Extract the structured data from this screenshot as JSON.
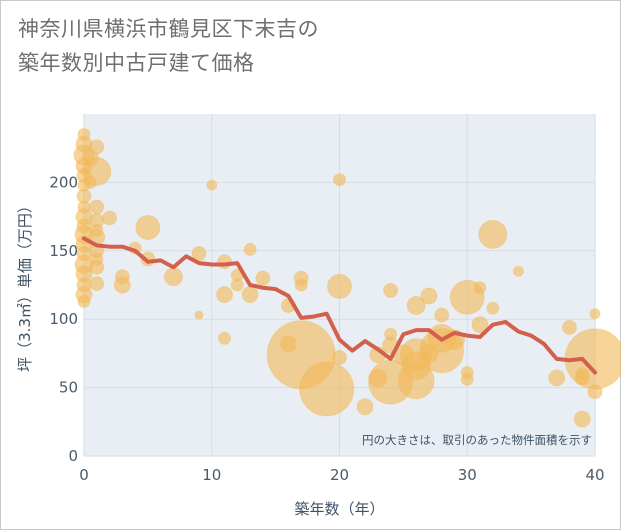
{
  "title_lines": [
    "神奈川県横浜市鶴見区下末吉の",
    "築年数別中古戸建て価格"
  ],
  "colors": {
    "bubble_fill": "#f2b95a",
    "bubble_opacity": 0.62,
    "line": "#d2604c",
    "grid": "#d4dde6",
    "plot_bg": "#e9eef4",
    "tick_text": "#4a5a6a"
  },
  "chart_data": {
    "type": "scatter",
    "title": "神奈川県横浜市鶴見区下末吉の築年数別中古戸建て価格",
    "xlabel": "築年数（年）",
    "ylabel": "坪（3.3㎡）単価（万円）",
    "xlim": [
      0,
      40
    ],
    "ylim": [
      0,
      250
    ],
    "x_ticks": [
      0,
      10,
      20,
      30,
      40
    ],
    "y_ticks": [
      0,
      50,
      100,
      150,
      200
    ],
    "grid": true,
    "note": "円の大きさは、取引のあった物件面積を示す",
    "bubbles": [
      {
        "x": 0,
        "y": 235,
        "s": 6
      },
      {
        "x": 0,
        "y": 228,
        "s": 8
      },
      {
        "x": 0,
        "y": 220,
        "s": 10
      },
      {
        "x": 0,
        "y": 212,
        "s": 8
      },
      {
        "x": 0,
        "y": 205,
        "s": 7
      },
      {
        "x": 0,
        "y": 198,
        "s": 6
      },
      {
        "x": 0,
        "y": 190,
        "s": 7
      },
      {
        "x": 0,
        "y": 182,
        "s": 6
      },
      {
        "x": 0,
        "y": 175,
        "s": 8
      },
      {
        "x": 0,
        "y": 168,
        "s": 7
      },
      {
        "x": 0,
        "y": 162,
        "s": 9
      },
      {
        "x": 0,
        "y": 155,
        "s": 8
      },
      {
        "x": 0,
        "y": 148,
        "s": 7
      },
      {
        "x": 0,
        "y": 140,
        "s": 9
      },
      {
        "x": 0,
        "y": 133,
        "s": 8
      },
      {
        "x": 0,
        "y": 125,
        "s": 7
      },
      {
        "x": 0,
        "y": 118,
        "s": 8
      },
      {
        "x": 0,
        "y": 113,
        "s": 6
      },
      {
        "x": 0.5,
        "y": 200,
        "s": 6
      },
      {
        "x": 0.5,
        "y": 218,
        "s": 8
      },
      {
        "x": 1,
        "y": 226,
        "s": 7
      },
      {
        "x": 1,
        "y": 208,
        "s": 14
      },
      {
        "x": 1,
        "y": 182,
        "s": 7
      },
      {
        "x": 1,
        "y": 172,
        "s": 7
      },
      {
        "x": 1,
        "y": 165,
        "s": 6
      },
      {
        "x": 1,
        "y": 160,
        "s": 8
      },
      {
        "x": 1,
        "y": 150,
        "s": 7
      },
      {
        "x": 1,
        "y": 144,
        "s": 6
      },
      {
        "x": 1,
        "y": 138,
        "s": 7
      },
      {
        "x": 1,
        "y": 126,
        "s": 7
      },
      {
        "x": 2,
        "y": 174,
        "s": 7
      },
      {
        "x": 3,
        "y": 131,
        "s": 7
      },
      {
        "x": 3,
        "y": 125,
        "s": 8
      },
      {
        "x": 4,
        "y": 152,
        "s": 6
      },
      {
        "x": 5,
        "y": 167,
        "s": 12
      },
      {
        "x": 5,
        "y": 144,
        "s": 7
      },
      {
        "x": 7,
        "y": 131,
        "s": 9
      },
      {
        "x": 9,
        "y": 148,
        "s": 7
      },
      {
        "x": 9,
        "y": 103,
        "s": 4
      },
      {
        "x": 10,
        "y": 198,
        "s": 5
      },
      {
        "x": 11,
        "y": 142,
        "s": 7
      },
      {
        "x": 11,
        "y": 118,
        "s": 8
      },
      {
        "x": 11,
        "y": 86,
        "s": 6
      },
      {
        "x": 12,
        "y": 132,
        "s": 6
      },
      {
        "x": 12,
        "y": 125,
        "s": 6
      },
      {
        "x": 13,
        "y": 151,
        "s": 6
      },
      {
        "x": 13,
        "y": 118,
        "s": 8
      },
      {
        "x": 14,
        "y": 130,
        "s": 7
      },
      {
        "x": 16,
        "y": 110,
        "s": 7
      },
      {
        "x": 16,
        "y": 82,
        "s": 8
      },
      {
        "x": 17,
        "y": 130,
        "s": 7
      },
      {
        "x": 17,
        "y": 125,
        "s": 6
      },
      {
        "x": 17,
        "y": 74,
        "s": 34
      },
      {
        "x": 19,
        "y": 49,
        "s": 27
      },
      {
        "x": 20,
        "y": 202,
        "s": 6
      },
      {
        "x": 20,
        "y": 124,
        "s": 12
      },
      {
        "x": 20,
        "y": 72,
        "s": 7
      },
      {
        "x": 22,
        "y": 36,
        "s": 8
      },
      {
        "x": 23,
        "y": 57,
        "s": 9
      },
      {
        "x": 23,
        "y": 74,
        "s": 8
      },
      {
        "x": 24,
        "y": 121,
        "s": 7
      },
      {
        "x": 24,
        "y": 89,
        "s": 6
      },
      {
        "x": 24,
        "y": 81,
        "s": 8
      },
      {
        "x": 24,
        "y": 54,
        "s": 22
      },
      {
        "x": 25,
        "y": 74,
        "s": 10
      },
      {
        "x": 26,
        "y": 110,
        "s": 9
      },
      {
        "x": 26,
        "y": 74,
        "s": 16
      },
      {
        "x": 26,
        "y": 66,
        "s": 14
      },
      {
        "x": 26,
        "y": 55,
        "s": 18
      },
      {
        "x": 27,
        "y": 117,
        "s": 8
      },
      {
        "x": 27,
        "y": 75,
        "s": 9
      },
      {
        "x": 28,
        "y": 103,
        "s": 7
      },
      {
        "x": 28,
        "y": 86,
        "s": 14
      },
      {
        "x": 28,
        "y": 77,
        "s": 22
      },
      {
        "x": 29,
        "y": 85,
        "s": 10
      },
      {
        "x": 30,
        "y": 116,
        "s": 17
      },
      {
        "x": 30,
        "y": 61,
        "s": 6
      },
      {
        "x": 30,
        "y": 56,
        "s": 6
      },
      {
        "x": 31,
        "y": 123,
        "s": 6
      },
      {
        "x": 31,
        "y": 96,
        "s": 8
      },
      {
        "x": 32,
        "y": 162,
        "s": 14
      },
      {
        "x": 32,
        "y": 108,
        "s": 6
      },
      {
        "x": 34,
        "y": 135,
        "s": 5
      },
      {
        "x": 37,
        "y": 57,
        "s": 8
      },
      {
        "x": 38,
        "y": 94,
        "s": 7
      },
      {
        "x": 39,
        "y": 60,
        "s": 6
      },
      {
        "x": 39,
        "y": 57,
        "s": 7
      },
      {
        "x": 39,
        "y": 27,
        "s": 8
      },
      {
        "x": 40,
        "y": 104,
        "s": 5
      },
      {
        "x": 40,
        "y": 47,
        "s": 7
      },
      {
        "x": 40,
        "y": 71,
        "s": 30
      }
    ],
    "series": [
      {
        "x": [
          0,
          1,
          2,
          3,
          4,
          5,
          6,
          7,
          8,
          9,
          10,
          11,
          12,
          13,
          14,
          15,
          16,
          17,
          18,
          19,
          20,
          21,
          22,
          23,
          24,
          25,
          26,
          27,
          28,
          29,
          30,
          31,
          32,
          33,
          34,
          35,
          36,
          37,
          38,
          39,
          40
        ],
        "values": [
          159,
          154,
          153,
          153,
          150,
          142,
          143,
          138,
          146,
          141,
          140,
          140,
          141,
          125,
          123,
          122,
          117,
          101,
          102,
          104,
          85,
          77,
          84,
          78,
          71,
          89,
          92,
          92,
          85,
          90,
          88,
          87,
          96,
          98,
          91,
          88,
          82,
          71,
          70,
          71,
          61
        ]
      }
    ]
  }
}
